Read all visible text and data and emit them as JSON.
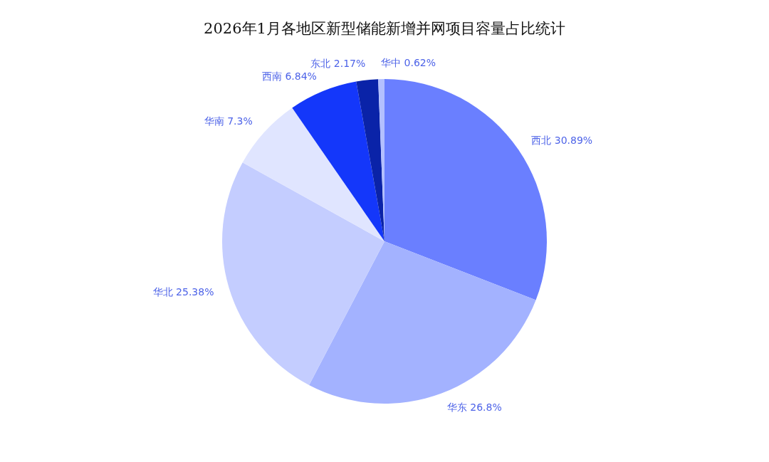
{
  "chart_data": {
    "type": "pie",
    "title": "2026年1月各地区新型储能新增并网项目容量占比统计",
    "categories": [
      "西北",
      "华东",
      "华北",
      "华南",
      "西南",
      "东北",
      "华中"
    ],
    "values": [
      30.89,
      26.8,
      25.38,
      7.3,
      6.84,
      2.17,
      0.62
    ],
    "value_labels": [
      "30.89%",
      "26.8%",
      "25.38%",
      "7.3%",
      "6.84%",
      "2.17%",
      "0.62%"
    ],
    "colors": [
      "#6a7fff",
      "#a3b2ff",
      "#c4cdff",
      "#e0e5ff",
      "#1437fa",
      "#0a23a8",
      "#b3c0ff"
    ],
    "legend": false
  }
}
